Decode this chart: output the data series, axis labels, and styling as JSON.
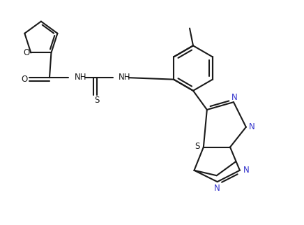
{
  "bg_color": "#ffffff",
  "line_color": "#1a1a1a",
  "n_color": "#3333cc",
  "line_width": 1.5,
  "figsize": [
    4.36,
    3.22
  ],
  "dpi": 100,
  "xlim": [
    0,
    8.72
  ],
  "ylim": [
    0,
    6.44
  ]
}
